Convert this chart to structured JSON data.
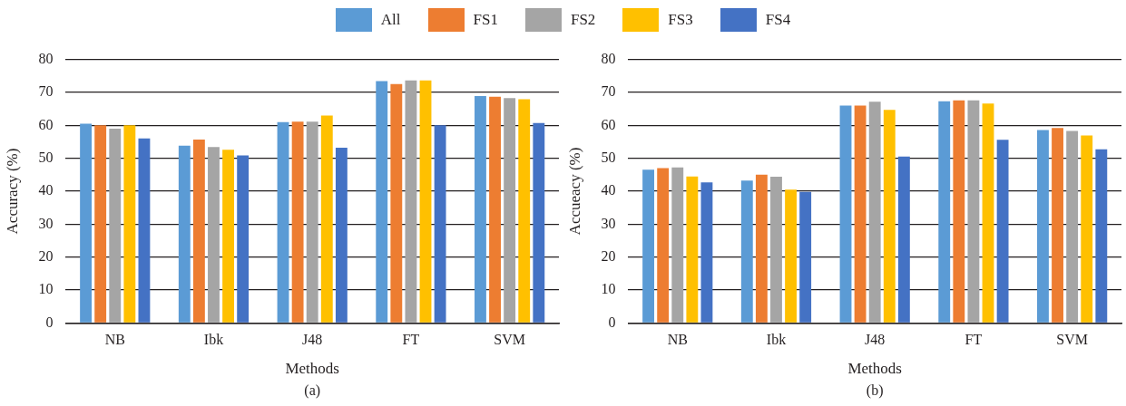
{
  "chart_data": [
    {
      "type": "bar",
      "xlabel": "Methods",
      "ylabel": "Accuracy (%)",
      "categories": [
        "NB",
        "Ibk",
        "J48",
        "FT",
        "SVM"
      ],
      "ylim": [
        0,
        80
      ],
      "yticks": [
        0,
        10,
        20,
        30,
        40,
        50,
        60,
        70,
        80
      ],
      "grid": "y",
      "legend": "top",
      "annotations": [
        "(a)"
      ],
      "series": [
        {
          "name": "All",
          "color": "#5b9bd5",
          "values": [
            60.5,
            53.8,
            61,
            73.4,
            68.9
          ]
        },
        {
          "name": "FS1",
          "color": "#ed7d31",
          "values": [
            60,
            55.7,
            61.1,
            72.5,
            68.7
          ]
        },
        {
          "name": "FS2",
          "color": "#a5a5a5",
          "values": [
            59,
            53.4,
            61.1,
            73.6,
            68.3
          ]
        },
        {
          "name": "FS3",
          "color": "#ffc000",
          "values": [
            60,
            52.6,
            63,
            73.6,
            67.9
          ]
        },
        {
          "name": "FS4",
          "color": "#4472c4",
          "values": [
            56,
            50.9,
            53.2,
            60,
            60.7
          ]
        }
      ]
    },
    {
      "type": "bar",
      "xlabel": "Methods",
      "ylabel": "Accueacy (%)",
      "categories": [
        "NB",
        "Ibk",
        "J48",
        "FT",
        "SVM"
      ],
      "ylim": [
        0,
        80
      ],
      "yticks": [
        0,
        10,
        20,
        30,
        40,
        50,
        60,
        70,
        80
      ],
      "grid": "y",
      "legend": "top",
      "annotations": [
        "(b)"
      ],
      "series": [
        {
          "name": "All",
          "color": "#5b9bd5",
          "values": [
            46.5,
            43.2,
            66,
            67.3,
            58.6
          ]
        },
        {
          "name": "FS1",
          "color": "#ed7d31",
          "values": [
            47,
            45,
            66,
            67.6,
            59.2
          ]
        },
        {
          "name": "FS2",
          "color": "#a5a5a5",
          "values": [
            47.2,
            44.4,
            67.2,
            67.6,
            58.3
          ]
        },
        {
          "name": "FS3",
          "color": "#ffc000",
          "values": [
            44.5,
            40.5,
            64.7,
            66.6,
            56.9
          ]
        },
        {
          "name": "FS4",
          "color": "#4472c4",
          "values": [
            42.7,
            39.8,
            50.5,
            55.6,
            52.7
          ]
        }
      ]
    }
  ]
}
